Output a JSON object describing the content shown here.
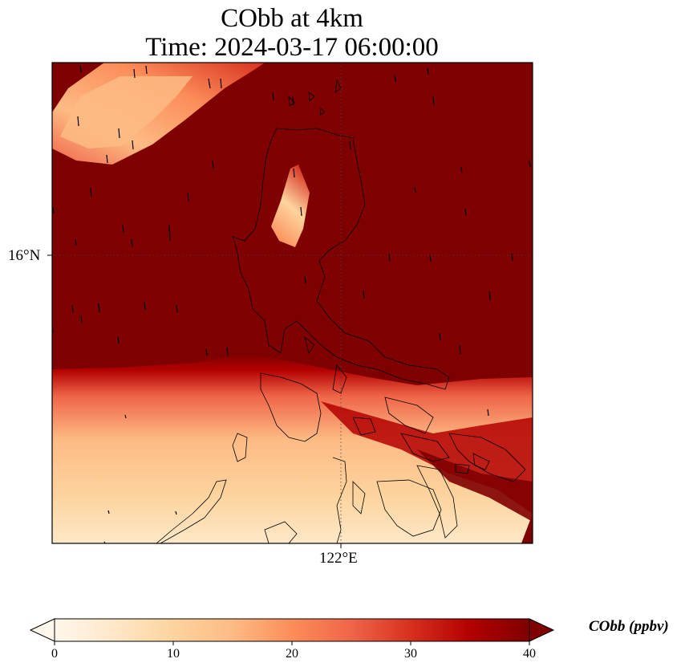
{
  "title": {
    "line1": "CObb at 4km",
    "line2": "Time: 2024-03-17 06:00:00"
  },
  "axes": {
    "lat_tick": "16°N",
    "lon_tick": "122°E"
  },
  "colorbar": {
    "label": "CObb (ppbv)",
    "min": 0,
    "max": 40,
    "ticks": [
      "0",
      "10",
      "20",
      "30",
      "40"
    ],
    "extend": "both",
    "colormap": "OrRd",
    "colors": [
      "#fff7ec",
      "#fee8c8",
      "#fdd49e",
      "#fdbb84",
      "#fc8d59",
      "#ef6548",
      "#d7301f",
      "#b30000",
      "#7f0000"
    ]
  },
  "map": {
    "variable": "CObb",
    "saturated_color": "#7f0000",
    "gridlines": "dotted",
    "coastlines": true,
    "wind_vectors": true
  }
}
